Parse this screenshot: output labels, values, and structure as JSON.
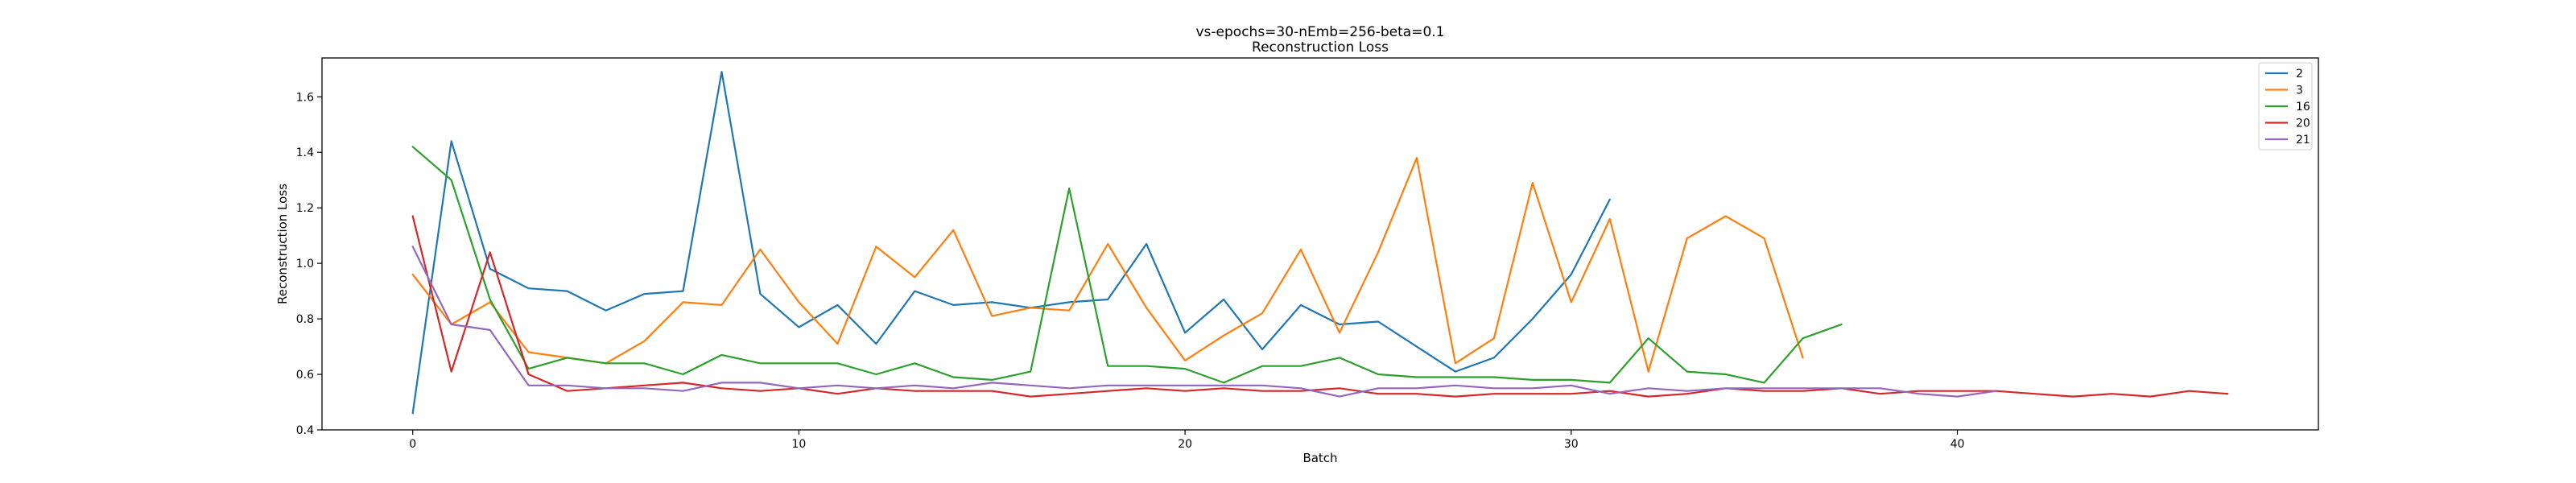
{
  "chart_data": {
    "type": "line",
    "title": "vs-epochs=30-nEmb=256-beta=0.1",
    "subtitle": "Reconstruction Loss",
    "xlabel": "Batch",
    "ylabel": "Reconstruction Loss",
    "xlim": [
      -2.35,
      49.35
    ],
    "ylim": [
      0.4,
      1.74
    ],
    "xticks": [
      0,
      10,
      20,
      30,
      40
    ],
    "yticks": [
      0.4,
      0.6,
      0.8,
      1.0,
      1.2,
      1.4,
      1.6
    ],
    "ytick_labels": [
      "0.4",
      "0.6",
      "0.8",
      "1.0",
      "1.2",
      "1.4",
      "1.6"
    ],
    "grid": false,
    "legend_position": "top-right",
    "series": [
      {
        "name": "2",
        "color": "#1f77b4",
        "x": [
          0,
          1,
          2,
          3,
          4,
          5,
          6,
          7,
          8,
          9,
          10,
          11,
          12,
          13,
          14,
          15,
          16,
          17,
          18,
          19,
          20,
          21,
          22,
          23,
          24,
          25,
          26,
          27,
          28,
          29,
          30,
          31
        ],
        "values": [
          0.46,
          1.44,
          0.98,
          0.91,
          0.9,
          0.83,
          0.89,
          0.9,
          1.69,
          0.89,
          0.77,
          0.85,
          0.71,
          0.9,
          0.85,
          0.86,
          0.84,
          0.86,
          0.87,
          1.07,
          0.75,
          0.87,
          0.69,
          0.85,
          0.78,
          0.79,
          0.7,
          0.61,
          0.66,
          0.8,
          0.96,
          1.23
        ]
      },
      {
        "name": "3",
        "color": "#ff7f0e",
        "x": [
          0,
          1,
          2,
          3,
          4,
          5,
          6,
          7,
          8,
          9,
          10,
          11,
          12,
          13,
          14,
          15,
          16,
          17,
          18,
          19,
          20,
          21,
          22,
          23,
          24,
          25,
          26,
          27,
          28,
          29,
          30,
          31,
          32,
          33,
          34,
          35,
          36
        ],
        "values": [
          0.96,
          0.78,
          0.86,
          0.68,
          0.66,
          0.64,
          0.72,
          0.86,
          0.85,
          1.05,
          0.86,
          0.71,
          1.06,
          0.95,
          1.12,
          0.81,
          0.84,
          0.83,
          1.07,
          0.84,
          0.65,
          0.74,
          0.82,
          1.05,
          0.75,
          1.04,
          1.38,
          0.64,
          0.73,
          1.29,
          0.86,
          1.16,
          0.61,
          1.09,
          1.17,
          1.09,
          0.66
        ]
      },
      {
        "name": "16",
        "color": "#2ca02c",
        "x": [
          0,
          1,
          2,
          3,
          4,
          5,
          6,
          7,
          8,
          9,
          10,
          11,
          12,
          13,
          14,
          15,
          16,
          17,
          18,
          19,
          20,
          21,
          22,
          23,
          24,
          25,
          26,
          27,
          28,
          29,
          30,
          31,
          32,
          33,
          34,
          35,
          36,
          37
        ],
        "values": [
          1.42,
          1.3,
          0.87,
          0.62,
          0.66,
          0.64,
          0.64,
          0.6,
          0.67,
          0.64,
          0.64,
          0.64,
          0.6,
          0.64,
          0.59,
          0.58,
          0.61,
          1.27,
          0.63,
          0.63,
          0.62,
          0.57,
          0.63,
          0.63,
          0.66,
          0.6,
          0.59,
          0.59,
          0.59,
          0.58,
          0.58,
          0.57,
          0.73,
          0.61,
          0.6,
          0.57,
          0.73,
          0.78
        ]
      },
      {
        "name": "20",
        "color": "#d62728",
        "x": [
          0,
          1,
          2,
          3,
          4,
          5,
          6,
          7,
          8,
          9,
          10,
          11,
          12,
          13,
          14,
          15,
          16,
          17,
          18,
          19,
          20,
          21,
          22,
          23,
          24,
          25,
          26,
          27,
          28,
          29,
          30,
          31,
          32,
          33,
          34,
          35,
          36,
          37,
          38,
          39,
          40,
          41,
          42,
          43,
          44,
          45,
          46,
          47
        ],
        "values": [
          1.17,
          0.61,
          1.04,
          0.6,
          0.54,
          0.55,
          0.56,
          0.57,
          0.55,
          0.54,
          0.55,
          0.53,
          0.55,
          0.54,
          0.54,
          0.54,
          0.52,
          0.53,
          0.54,
          0.55,
          0.54,
          0.55,
          0.54,
          0.54,
          0.55,
          0.53,
          0.53,
          0.52,
          0.53,
          0.53,
          0.53,
          0.54,
          0.52,
          0.53,
          0.55,
          0.54,
          0.54,
          0.55,
          0.53,
          0.54,
          0.54,
          0.54,
          0.53,
          0.52,
          0.53,
          0.52,
          0.54,
          0.53
        ]
      },
      {
        "name": "21",
        "color": "#9467bd",
        "x": [
          0,
          1,
          2,
          3,
          4,
          5,
          6,
          7,
          8,
          9,
          10,
          11,
          12,
          13,
          14,
          15,
          16,
          17,
          18,
          19,
          20,
          21,
          22,
          23,
          24,
          25,
          26,
          27,
          28,
          29,
          30,
          31,
          32,
          33,
          34,
          35,
          36,
          37,
          38,
          39,
          40,
          41
        ],
        "values": [
          1.06,
          0.78,
          0.76,
          0.56,
          0.56,
          0.55,
          0.55,
          0.54,
          0.57,
          0.57,
          0.55,
          0.56,
          0.55,
          0.56,
          0.55,
          0.57,
          0.56,
          0.55,
          0.56,
          0.56,
          0.56,
          0.56,
          0.56,
          0.55,
          0.52,
          0.55,
          0.55,
          0.56,
          0.55,
          0.55,
          0.56,
          0.53,
          0.55,
          0.54,
          0.55,
          0.55,
          0.55,
          0.55,
          0.55,
          0.53,
          0.52,
          0.54
        ]
      }
    ]
  }
}
